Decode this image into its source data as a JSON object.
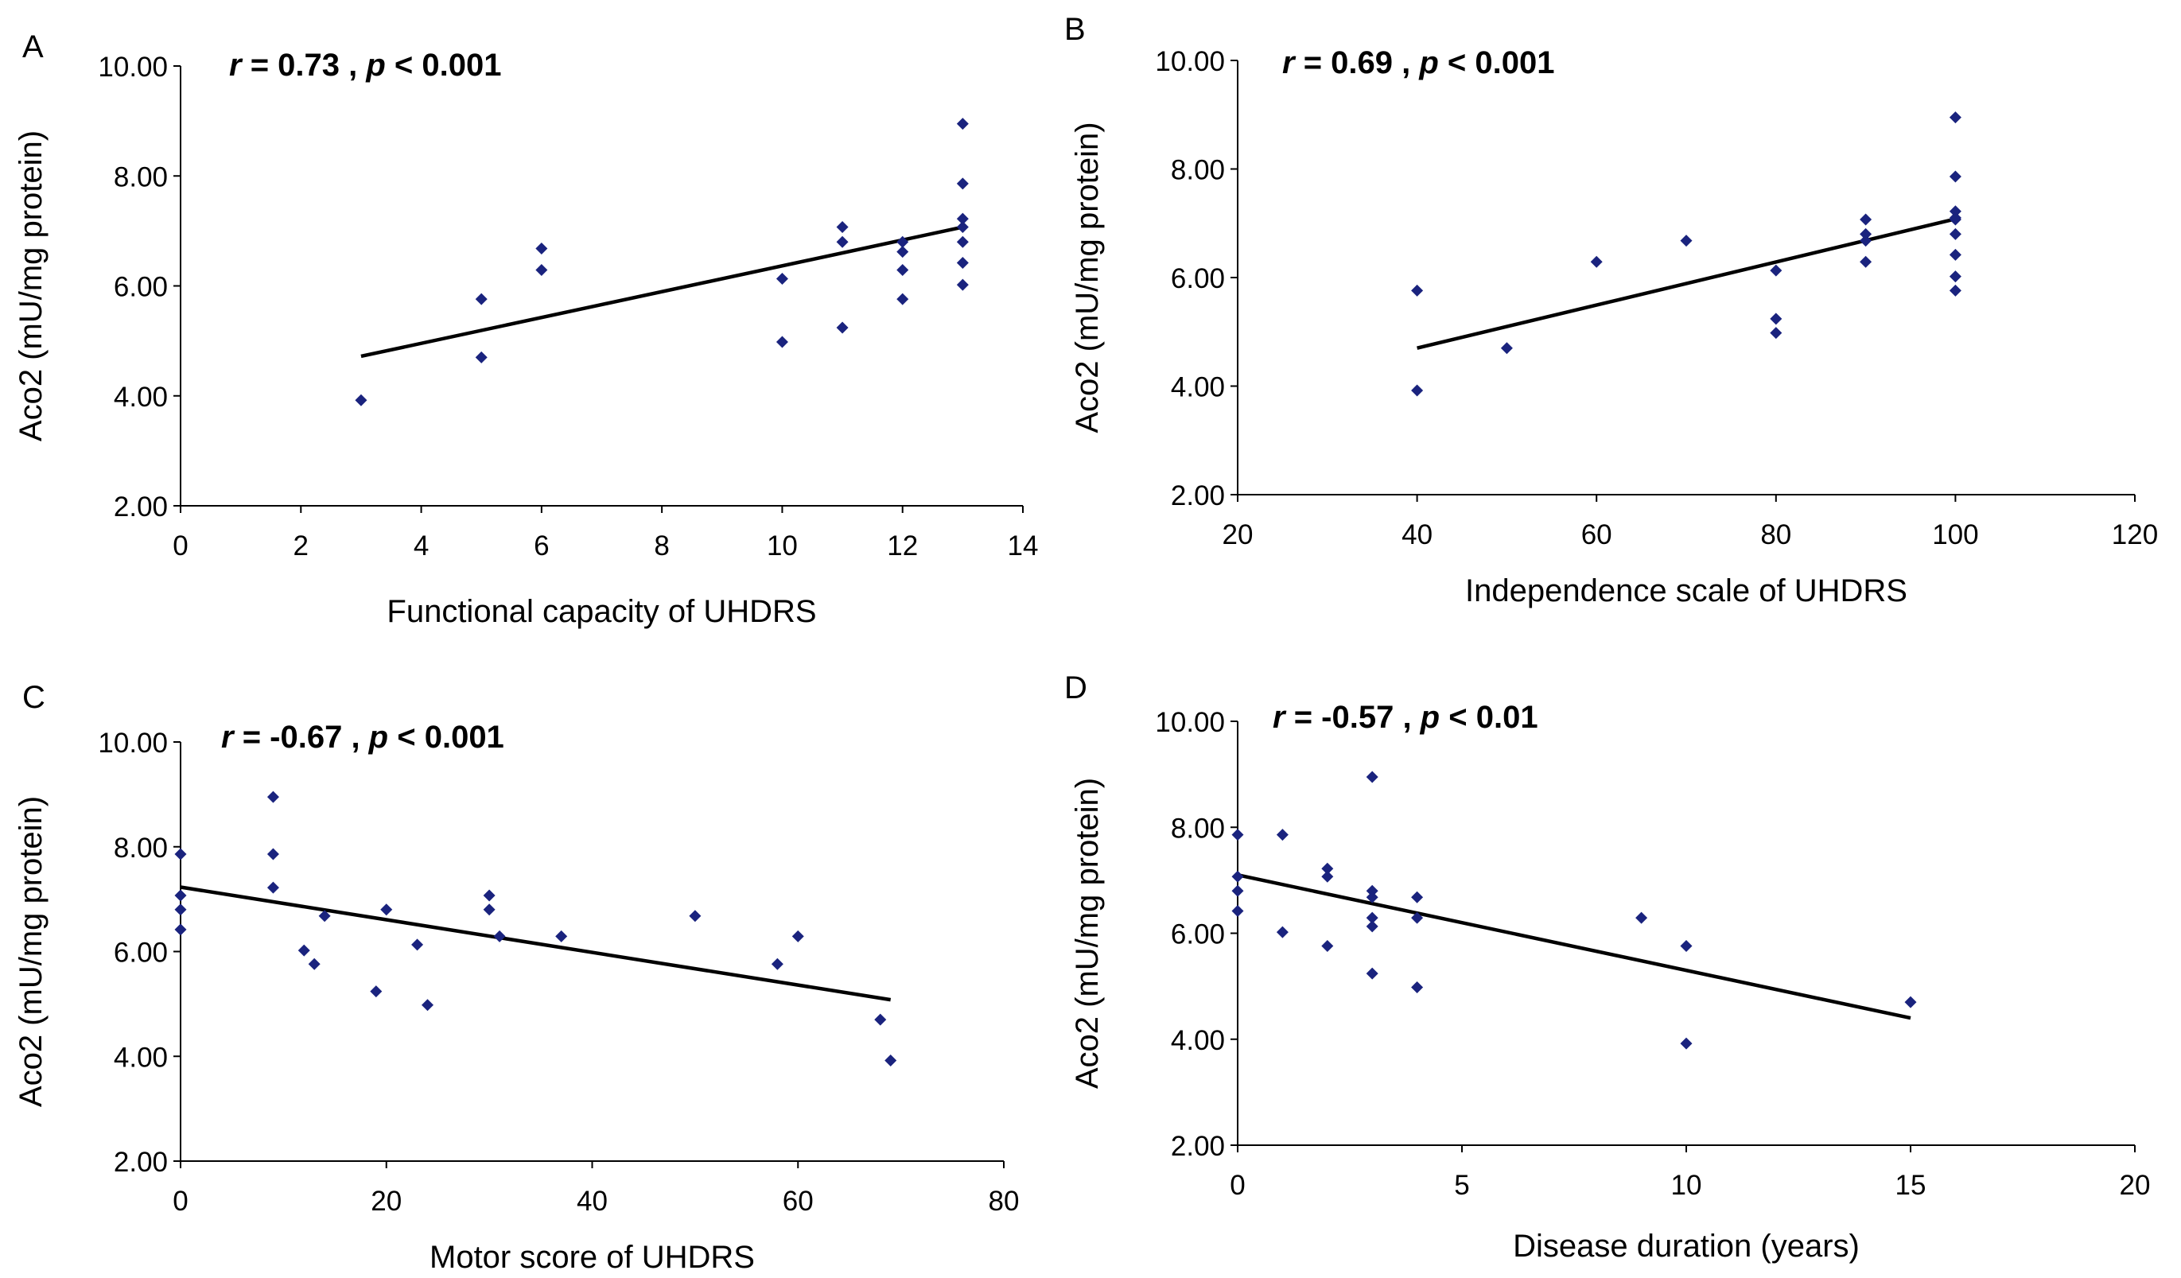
{
  "chart_data": [
    {
      "panel_label": "A",
      "type": "scatter",
      "annotation": {
        "r_label": "r",
        "r_value": "= 0.73 ,",
        "p_label": "p",
        "p_value": "< 0.001"
      },
      "xlabel": "Functional capacity of UHDRS",
      "ylabel": "Aco2 (mU/mg protein)",
      "xlim": [
        0,
        14
      ],
      "ylim": [
        2,
        10
      ],
      "xticks": [
        "0",
        "2",
        "4",
        "6",
        "8",
        "10",
        "12",
        "14"
      ],
      "yticks": [
        "2.00",
        "4.00",
        "6.00",
        "8.00",
        "10.00"
      ],
      "x": [
        3,
        5,
        5,
        6,
        6,
        10,
        10,
        11,
        11,
        11,
        12,
        12,
        12,
        12,
        13,
        13,
        13,
        13,
        13,
        13,
        13
      ],
      "y": [
        3.92,
        4.7,
        5.76,
        6.29,
        6.68,
        4.98,
        6.13,
        5.24,
        6.8,
        7.07,
        5.76,
        6.29,
        6.62,
        6.8,
        6.02,
        6.42,
        6.8,
        7.07,
        7.22,
        7.86,
        8.95
      ],
      "trendline": {
        "x": [
          3,
          13
        ],
        "y": [
          4.72,
          7.07
        ]
      }
    },
    {
      "panel_label": "B",
      "type": "scatter",
      "annotation": {
        "r_label": "r",
        "r_value": "= 0.69 ,",
        "p_label": "p",
        "p_value": "< 0.001"
      },
      "xlabel": "Independence scale of UHDRS",
      "ylabel": "Aco2 (mU/mg protein)",
      "xlim": [
        20,
        120
      ],
      "ylim": [
        2,
        10
      ],
      "xticks": [
        "20",
        "40",
        "60",
        "80",
        "100",
        "120"
      ],
      "yticks": [
        "2.00",
        "4.00",
        "6.00",
        "8.00",
        "10.00"
      ],
      "x": [
        40,
        40,
        50,
        60,
        70,
        80,
        80,
        80,
        90,
        90,
        90,
        90,
        100,
        100,
        100,
        100,
        100,
        100,
        100,
        100,
        100
      ],
      "y": [
        3.92,
        5.76,
        4.7,
        6.29,
        6.68,
        4.98,
        5.24,
        6.13,
        6.29,
        6.68,
        6.8,
        7.07,
        5.76,
        6.02,
        6.42,
        6.8,
        7.07,
        7.22,
        7.86,
        8.95,
        7.1
      ],
      "trendline": {
        "x": [
          40,
          100
        ],
        "y": [
          4.7,
          7.08
        ]
      }
    },
    {
      "panel_label": "C",
      "type": "scatter",
      "annotation": {
        "r_label": "r",
        "r_value": "= -0.67 ,",
        "p_label": "p",
        "p_value": "< 0.001"
      },
      "xlabel": "Motor score of UHDRS",
      "ylabel": "Aco2 (mU/mg protein)",
      "xlim": [
        0,
        80
      ],
      "ylim": [
        2,
        10
      ],
      "xticks": [
        "0",
        "20",
        "40",
        "60",
        "80"
      ],
      "yticks": [
        "2.00",
        "4.00",
        "6.00",
        "8.00",
        "10.00"
      ],
      "x": [
        0,
        0,
        0,
        0,
        9,
        9,
        9,
        12,
        13,
        14,
        19,
        20,
        23,
        24,
        30,
        30,
        31,
        37,
        50,
        58,
        60,
        68,
        69
      ],
      "y": [
        7.86,
        7.07,
        6.8,
        6.42,
        8.95,
        7.86,
        7.22,
        6.02,
        5.76,
        6.68,
        5.24,
        6.8,
        6.13,
        4.98,
        7.07,
        6.8,
        6.29,
        6.29,
        6.68,
        5.76,
        6.29,
        4.7,
        3.92
      ],
      "trendline": {
        "x": [
          0,
          69
        ],
        "y": [
          7.23,
          5.08
        ]
      }
    },
    {
      "panel_label": "D",
      "type": "scatter",
      "annotation": {
        "r_label": "r",
        "r_value": "= -0.57 ,",
        "p_label": "p",
        "p_value": "< 0.01"
      },
      "xlabel": "Disease duration (years)",
      "ylabel": "Aco2 (mU/mg protein)",
      "xlim": [
        0,
        20
      ],
      "ylim": [
        2,
        10
      ],
      "xticks": [
        "0",
        "5",
        "10",
        "15",
        "20"
      ],
      "yticks": [
        "2.00",
        "4.00",
        "6.00",
        "8.00",
        "10.00"
      ],
      "x": [
        0,
        0,
        0,
        0,
        1,
        1,
        2,
        2,
        2,
        3,
        3,
        3,
        3,
        3,
        3,
        4,
        4,
        4,
        9,
        10,
        10,
        15
      ],
      "y": [
        7.86,
        7.07,
        6.8,
        6.42,
        7.86,
        6.02,
        7.22,
        7.07,
        5.76,
        8.95,
        6.8,
        6.68,
        6.29,
        6.13,
        5.24,
        6.68,
        6.29,
        4.98,
        6.29,
        5.76,
        3.92,
        4.7
      ],
      "trendline": {
        "x": [
          0,
          15
        ],
        "y": [
          7.1,
          4.4
        ]
      }
    }
  ],
  "colors": {
    "marker": "#1a237e",
    "line": "#000000",
    "axis": "#000000"
  }
}
